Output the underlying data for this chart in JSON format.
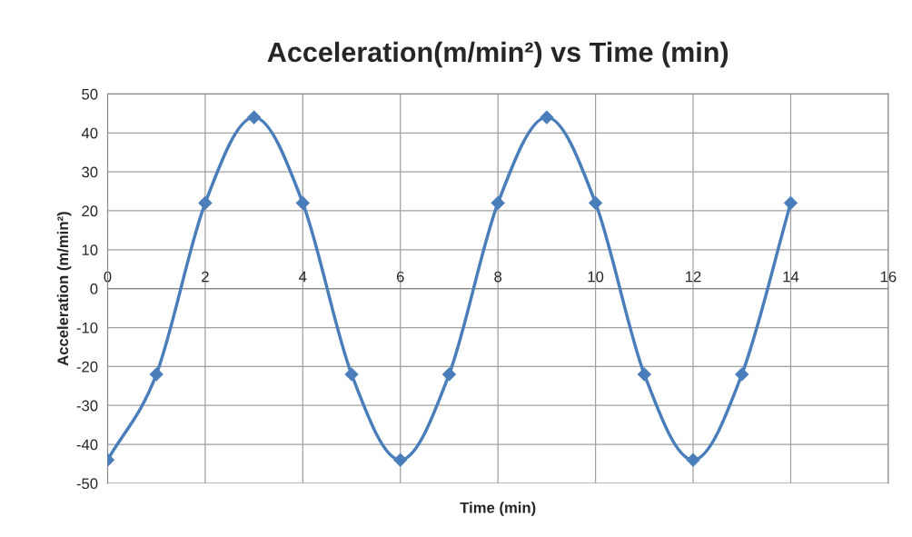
{
  "chart_data": {
    "type": "line",
    "title": "Acceleration(m/min²) vs Time (min)",
    "xlabel": "Time (min)",
    "ylabel": "Acceleration (m/min²)",
    "x": [
      0,
      1,
      2,
      3,
      4,
      5,
      6,
      7,
      8,
      9,
      10,
      11,
      12,
      13,
      14
    ],
    "series": [
      {
        "color": "#4a7ebb",
        "values": [
          -44,
          -22,
          22,
          44,
          22,
          -22,
          -44,
          -22,
          22,
          44,
          22,
          -22,
          -44,
          -22,
          22
        ]
      }
    ],
    "xlim": [
      0,
      16
    ],
    "xticks": [
      0,
      2,
      4,
      6,
      8,
      10,
      12,
      14,
      16
    ],
    "ylim": [
      -50,
      50
    ],
    "yticks": [
      -50,
      -40,
      -30,
      -20,
      -10,
      0,
      10,
      20,
      30,
      40,
      50
    ],
    "grid": true,
    "legend": false,
    "marker": "diamond",
    "line_style": "solid"
  }
}
